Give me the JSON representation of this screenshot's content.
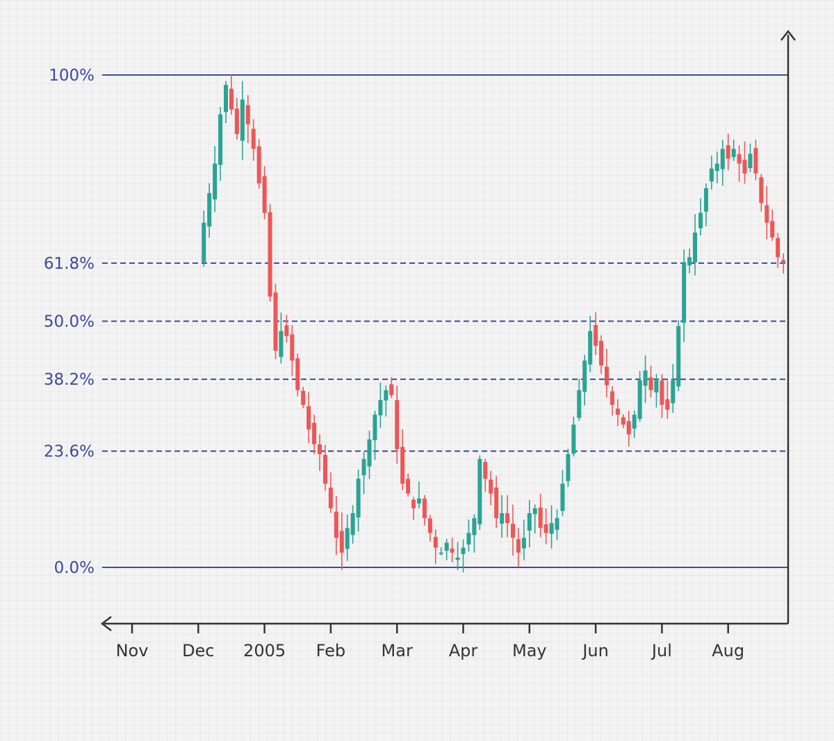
{
  "colors": {
    "up": "#2aa394",
    "down": "#ee5656",
    "level_line": "#3d4a9c",
    "axis": "#333333",
    "background": "#f3f3f4"
  },
  "chart_data": {
    "type": "candlestick",
    "title": "",
    "xlabel": "",
    "ylabel": "",
    "grid": true,
    "x_tick_labels": [
      "Nov",
      "Dec",
      "2005",
      "Feb",
      "Mar",
      "Apr",
      "May",
      "Jun",
      "Jul",
      "Aug"
    ],
    "ylim": [
      -11.2,
      108.3
    ],
    "xlim": [
      -2,
      119
    ],
    "fib_levels": [
      {
        "label": "100%",
        "value": 100,
        "style": "solid"
      },
      {
        "label": "61.8%",
        "value": 61.8,
        "style": "dashed"
      },
      {
        "label": "50.0%",
        "value": 50,
        "style": "dashed"
      },
      {
        "label": "38.2%",
        "value": 38.2,
        "style": "dashed"
      },
      {
        "label": "23.6%",
        "value": 23.6,
        "style": "dashed"
      },
      {
        "label": "0.0%",
        "value": 0,
        "style": "solid"
      }
    ],
    "close_path": [
      [
        12,
        62
      ],
      [
        13,
        70
      ],
      [
        14,
        76
      ],
      [
        15,
        82
      ],
      [
        16,
        92
      ],
      [
        17,
        98
      ],
      [
        18,
        93
      ],
      [
        19,
        88
      ],
      [
        20,
        95
      ],
      [
        21,
        90
      ],
      [
        22,
        85
      ],
      [
        23,
        78
      ],
      [
        24,
        72
      ],
      [
        25,
        55
      ],
      [
        26,
        44
      ],
      [
        27,
        48
      ],
      [
        28,
        47
      ],
      [
        29,
        42
      ],
      [
        30,
        36
      ],
      [
        31,
        33
      ],
      [
        32,
        28
      ],
      [
        33,
        25
      ],
      [
        34,
        23
      ],
      [
        35,
        17
      ],
      [
        36,
        12
      ],
      [
        37,
        6
      ],
      [
        38,
        3
      ],
      [
        39,
        8
      ],
      [
        40,
        11
      ],
      [
        41,
        18
      ],
      [
        42,
        22
      ],
      [
        43,
        26
      ],
      [
        44,
        31
      ],
      [
        45,
        34
      ],
      [
        46,
        36
      ],
      [
        47,
        35
      ],
      [
        48,
        24
      ],
      [
        49,
        17
      ],
      [
        50,
        15
      ],
      [
        51,
        12
      ],
      [
        52,
        14
      ],
      [
        53,
        10
      ],
      [
        54,
        7
      ],
      [
        55,
        4
      ],
      [
        56,
        3
      ],
      [
        57,
        5
      ],
      [
        58,
        3
      ],
      [
        59,
        2
      ],
      [
        60,
        4
      ],
      [
        61,
        7
      ],
      [
        62,
        10
      ],
      [
        63,
        22
      ],
      [
        64,
        18
      ],
      [
        65,
        15
      ],
      [
        66,
        10
      ],
      [
        67,
        11
      ],
      [
        68,
        9
      ],
      [
        69,
        6
      ],
      [
        70,
        3
      ],
      [
        71,
        6
      ],
      [
        72,
        11
      ],
      [
        73,
        12
      ],
      [
        74,
        8
      ],
      [
        75,
        7
      ],
      [
        76,
        9
      ],
      [
        77,
        10
      ],
      [
        78,
        17
      ],
      [
        79,
        23
      ],
      [
        80,
        29
      ],
      [
        81,
        36
      ],
      [
        82,
        42
      ],
      [
        83,
        48
      ],
      [
        84,
        45
      ],
      [
        85,
        41
      ],
      [
        86,
        37
      ],
      [
        87,
        33
      ],
      [
        88,
        31
      ],
      [
        89,
        29
      ],
      [
        90,
        27
      ],
      [
        91,
        31
      ],
      [
        92,
        38
      ],
      [
        93,
        40
      ],
      [
        94,
        36
      ],
      [
        95,
        38
      ],
      [
        96,
        33
      ],
      [
        97,
        32
      ],
      [
        98,
        38
      ],
      [
        99,
        49
      ],
      [
        100,
        62
      ],
      [
        101,
        63
      ],
      [
        102,
        68
      ],
      [
        103,
        72
      ],
      [
        104,
        77
      ],
      [
        105,
        81
      ],
      [
        106,
        82
      ],
      [
        107,
        85
      ],
      [
        108,
        83
      ],
      [
        109,
        85
      ],
      [
        110,
        82
      ],
      [
        111,
        80
      ],
      [
        112,
        84
      ],
      [
        113,
        80
      ],
      [
        114,
        74
      ],
      [
        115,
        70
      ],
      [
        116,
        67
      ],
      [
        117,
        63
      ],
      [
        118,
        62
      ]
    ]
  }
}
